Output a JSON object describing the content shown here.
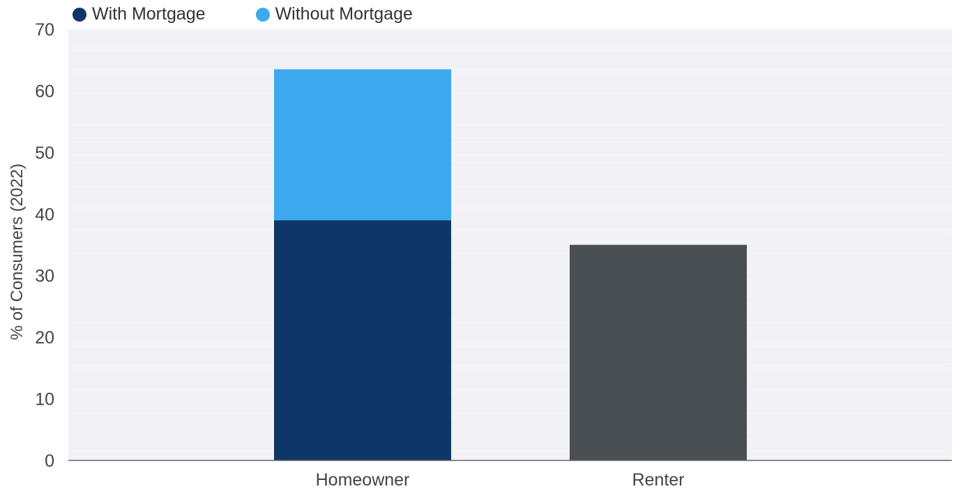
{
  "chart_data": {
    "type": "bar",
    "stacked": true,
    "categories": [
      "Homeowner",
      "Renter"
    ],
    "series": [
      {
        "name": "With Mortgage",
        "color": "#0E3666",
        "values": [
          39,
          null
        ]
      },
      {
        "name": "Without Mortgage",
        "color": "#3DA9EE",
        "values": [
          24.5,
          null
        ]
      },
      {
        "name": "",
        "color": "#4A4F54",
        "values": [
          null,
          35
        ]
      }
    ],
    "ylabel": "% of Consumers (2022)",
    "xlabel": "",
    "ylim": [
      0,
      70
    ],
    "yticks": [
      "0",
      "10",
      "20",
      "30",
      "40",
      "50",
      "60",
      "70"
    ],
    "legend_position": "top-left",
    "background": "#F2F2F7"
  },
  "legend": [
    {
      "label": "With Mortgage",
      "color": "#0E3666"
    },
    {
      "label": "Without Mortgage",
      "color": "#3DA9EE"
    }
  ]
}
